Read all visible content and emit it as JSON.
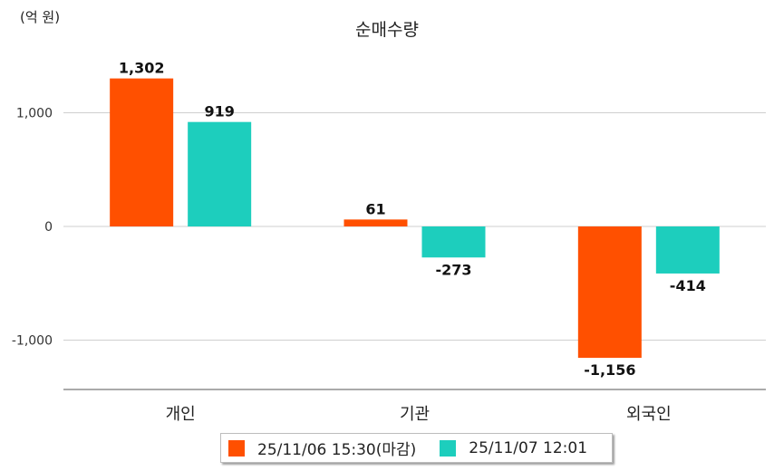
{
  "chart_data": {
    "type": "bar",
    "title": "순매수량",
    "unit": "(억 원)",
    "categories": [
      "개인",
      "기관",
      "외국인"
    ],
    "series": [
      {
        "name": "25/11/06 15:30(마감)",
        "color": "#ff5000",
        "values": [
          1302,
          61,
          -1156
        ],
        "labels": [
          "1,302",
          "61",
          "-1,156"
        ]
      },
      {
        "name": "25/11/07 12:01",
        "color": "#1dcebd",
        "values": [
          919,
          -273,
          -414
        ],
        "labels": [
          "919",
          "-273",
          "-414"
        ]
      }
    ],
    "yticks": [
      1000,
      0,
      -1000
    ],
    "ytick_labels": [
      "1,000",
      "0",
      "-1,000"
    ],
    "ylim": [
      -1450,
      1550
    ],
    "grid": true,
    "legend_position": "bottom"
  }
}
